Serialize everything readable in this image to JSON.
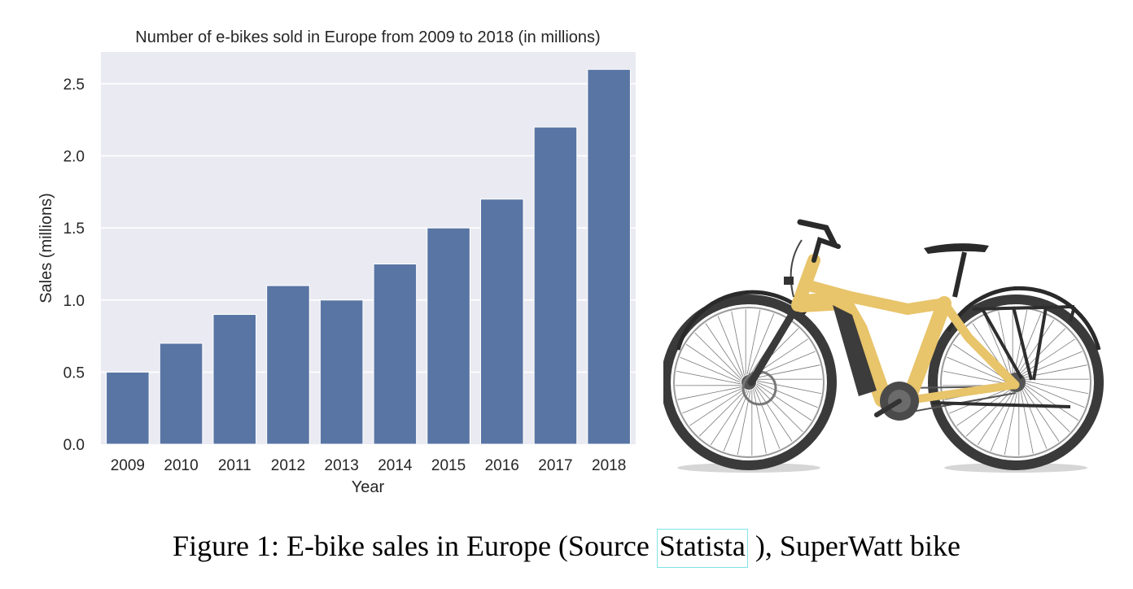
{
  "chart_data": {
    "type": "bar",
    "title": "Number of e-bikes sold in Europe from 2009 to 2018 (in millions)",
    "xlabel": "Year",
    "ylabel": "Sales (millions)",
    "categories": [
      "2009",
      "2010",
      "2011",
      "2012",
      "2013",
      "2014",
      "2015",
      "2016",
      "2017",
      "2018"
    ],
    "values": [
      0.5,
      0.7,
      0.9,
      1.1,
      1.0,
      1.25,
      1.5,
      1.7,
      2.2,
      2.6
    ],
    "yticks": [
      "0.0",
      "0.5",
      "1.0",
      "1.5",
      "2.0",
      "2.5"
    ],
    "ylim": [
      0,
      2.72
    ],
    "grid": true,
    "colors": {
      "bar": "#5975a4",
      "plot_bg": "#eaeaf2",
      "grid": "#ffffff"
    }
  },
  "caption": {
    "prefix": "Figure 1: E-bike sales in Europe (Source ",
    "link": "Statista",
    "suffix": " ), SuperWatt bike"
  },
  "bike": {
    "frame_color": "#e8c46a"
  }
}
